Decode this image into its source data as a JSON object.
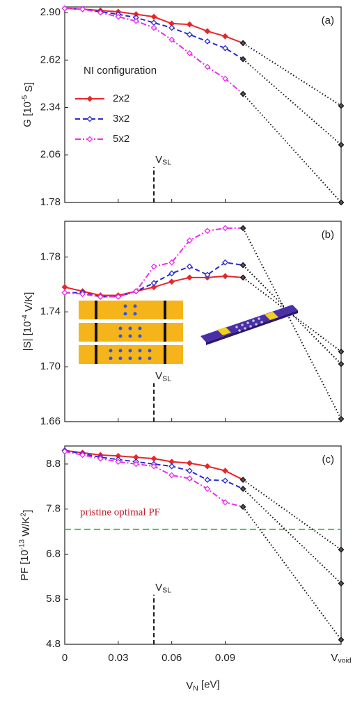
{
  "chart_data": [
    {
      "type": "line",
      "panel_label": "(a)",
      "y_label": "G [10^-5 S]",
      "x": [
        0,
        0.01,
        0.02,
        0.03,
        0.04,
        0.05,
        0.06,
        0.07,
        0.08,
        0.09,
        0.1,
        0.155
      ],
      "xlim": [
        0,
        0.155
      ],
      "ylim": [
        1.78,
        2.933
      ],
      "yticks": [
        {
          "value": 2.9,
          "label": "2.90"
        },
        2.62,
        2.34,
        2.06,
        1.78
      ],
      "legend_title": "NI configuration",
      "legend": "left",
      "vline": {
        "x": 0.05,
        "y": [
          1.78,
          1.99
        ],
        "label": "V_SL"
      },
      "series": [
        {
          "name": "2x2",
          "color": "#e8262a",
          "values": [
            2.925,
            2.92,
            2.912,
            2.905,
            2.89,
            2.875,
            2.835,
            2.83,
            2.79,
            2.76,
            2.72,
            2.35
          ]
        },
        {
          "name": "3x2",
          "color": "#2a2acc",
          "values": [
            2.925,
            2.92,
            2.905,
            2.89,
            2.87,
            2.84,
            2.81,
            2.77,
            2.73,
            2.69,
            2.625,
            2.12
          ]
        },
        {
          "name": "5x2",
          "color": "#ee2aee",
          "values": [
            2.925,
            2.92,
            2.9,
            2.875,
            2.85,
            2.81,
            2.74,
            2.66,
            2.58,
            2.51,
            2.42,
            1.78
          ]
        }
      ]
    },
    {
      "type": "line",
      "panel_label": "(b)",
      "y_label": "|S| [10^-4 V/K]",
      "x": [
        0,
        0.01,
        0.02,
        0.03,
        0.04,
        0.05,
        0.06,
        0.07,
        0.08,
        0.09,
        0.1,
        0.155
      ],
      "xlim": [
        0,
        0.155
      ],
      "ylim": [
        1.66,
        1.806
      ],
      "yticks": [
        1.78,
        1.74,
        {
          "value": 1.7,
          "label": "1.70"
        },
        1.66
      ],
      "vline": {
        "x": 0.05,
        "y": [
          1.66,
          1.688
        ],
        "label": "V_SL"
      },
      "series": [
        {
          "color": "#e8262a",
          "values": [
            1.758,
            1.755,
            1.752,
            1.752,
            1.755,
            1.758,
            1.762,
            1.765,
            1.765,
            1.766,
            1.765,
            1.711
          ]
        },
        {
          "color": "#2a2acc",
          "values": [
            1.754,
            1.754,
            1.751,
            1.751,
            1.755,
            1.761,
            1.768,
            1.773,
            1.767,
            1.776,
            1.774,
            1.702
          ]
        },
        {
          "color": "#ee2aee",
          "values": [
            1.754,
            1.753,
            1.751,
            1.751,
            1.755,
            1.773,
            1.776,
            1.792,
            1.799,
            1.801,
            1.801,
            1.662
          ]
        }
      ]
    },
    {
      "type": "line",
      "panel_label": "(c)",
      "y_label": "PF [10^-13 W/K^2]",
      "x_label": "V_N [eV]",
      "x": [
        0,
        0.01,
        0.02,
        0.03,
        0.04,
        0.05,
        0.06,
        0.07,
        0.08,
        0.09,
        0.1,
        0.155
      ],
      "xlim": [
        0,
        0.155
      ],
      "xticks": [
        0,
        0.03,
        0.06,
        0.09,
        {
          "value": 0.155,
          "label": "V_void"
        }
      ],
      "ylim": [
        4.8,
        9.2
      ],
      "yticks": [
        8.8,
        7.8,
        6.8,
        5.8,
        4.8
      ],
      "vline": {
        "x": 0.05,
        "y": [
          4.8,
          5.9
        ],
        "label": "V_SL"
      },
      "hline": {
        "y": 7.35,
        "label": "pristine optimal PF",
        "color": "#3ccc3c",
        "label_color": "#c0202a"
      },
      "series": [
        {
          "color": "#e8262a",
          "values": [
            9.1,
            9.05,
            9.0,
            8.98,
            8.95,
            8.92,
            8.85,
            8.82,
            8.75,
            8.65,
            8.45,
            6.9
          ]
        },
        {
          "color": "#2a2acc",
          "values": [
            9.1,
            9.03,
            8.95,
            8.9,
            8.85,
            8.8,
            8.75,
            8.65,
            8.45,
            8.43,
            8.25,
            6.15
          ]
        },
        {
          "color": "#ee2aee",
          "values": [
            9.08,
            9.0,
            8.92,
            8.85,
            8.8,
            8.75,
            8.55,
            8.48,
            8.25,
            7.95,
            7.85,
            4.9
          ]
        }
      ]
    }
  ]
}
